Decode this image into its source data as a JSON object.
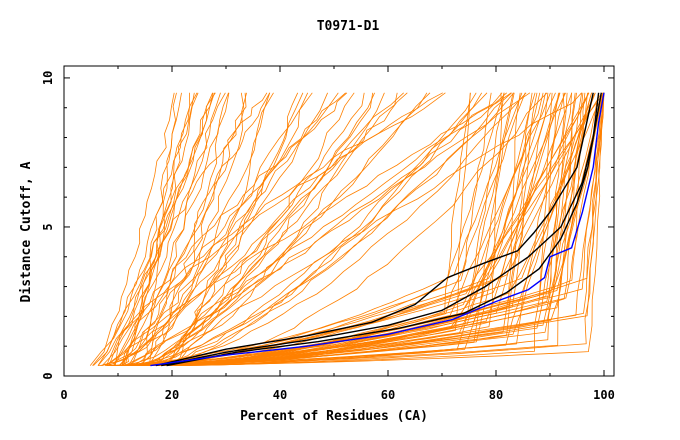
{
  "chart_data": {
    "type": "line",
    "title": "T0971-D1",
    "xlabel": "Percent of Residues (CA)",
    "ylabel": "Distance Cutoff, A",
    "xlim": [
      0,
      100
    ],
    "ylim": [
      0,
      10
    ],
    "x_ticks": [
      "0",
      "20",
      "40",
      "60",
      "80",
      "100"
    ],
    "y_ticks": [
      "0",
      "5",
      "10"
    ],
    "grid": false,
    "legend": "none",
    "colors": {
      "orange": "#ff8000",
      "black": "#000000",
      "blue": "#0000ff"
    },
    "series": [
      {
        "color": "#000000",
        "points": [
          [
            18,
            0.35
          ],
          [
            30,
            0.8
          ],
          [
            45,
            1.2
          ],
          [
            60,
            1.7
          ],
          [
            70,
            2.2
          ],
          [
            78,
            3.0
          ],
          [
            86,
            4.0
          ],
          [
            92,
            5.0
          ],
          [
            96,
            6.5
          ],
          [
            98,
            8.0
          ],
          [
            99,
            9.5
          ]
        ]
      },
      {
        "color": "#000000",
        "points": [
          [
            17,
            0.35
          ],
          [
            30,
            0.9
          ],
          [
            45,
            1.35
          ],
          [
            57,
            1.8
          ],
          [
            65,
            2.4
          ],
          [
            71,
            3.3
          ],
          [
            78,
            3.8
          ],
          [
            84,
            4.2
          ],
          [
            87,
            4.8
          ],
          [
            90,
            5.5
          ],
          [
            95,
            7.0
          ],
          [
            98,
            9.5
          ]
        ]
      },
      {
        "color": "#000000",
        "points": [
          [
            19,
            0.35
          ],
          [
            32,
            0.8
          ],
          [
            47,
            1.15
          ],
          [
            62,
            1.6
          ],
          [
            74,
            2.1
          ],
          [
            82,
            2.8
          ],
          [
            88,
            3.6
          ],
          [
            92,
            4.6
          ],
          [
            95,
            5.8
          ],
          [
            97,
            7.0
          ],
          [
            99,
            9.0
          ],
          [
            99.5,
            9.5
          ]
        ]
      },
      {
        "color": "#0000ff",
        "points": [
          [
            16,
            0.35
          ],
          [
            30,
            0.7
          ],
          [
            45,
            1.0
          ],
          [
            60,
            1.4
          ],
          [
            72,
            1.9
          ],
          [
            80,
            2.5
          ],
          [
            86,
            2.9
          ],
          [
            89,
            3.3
          ],
          [
            90,
            4.0
          ],
          [
            94,
            4.3
          ],
          [
            96,
            5.5
          ],
          [
            98,
            7.0
          ],
          [
            99,
            8.5
          ],
          [
            100,
            9.5
          ]
        ]
      }
    ]
  }
}
